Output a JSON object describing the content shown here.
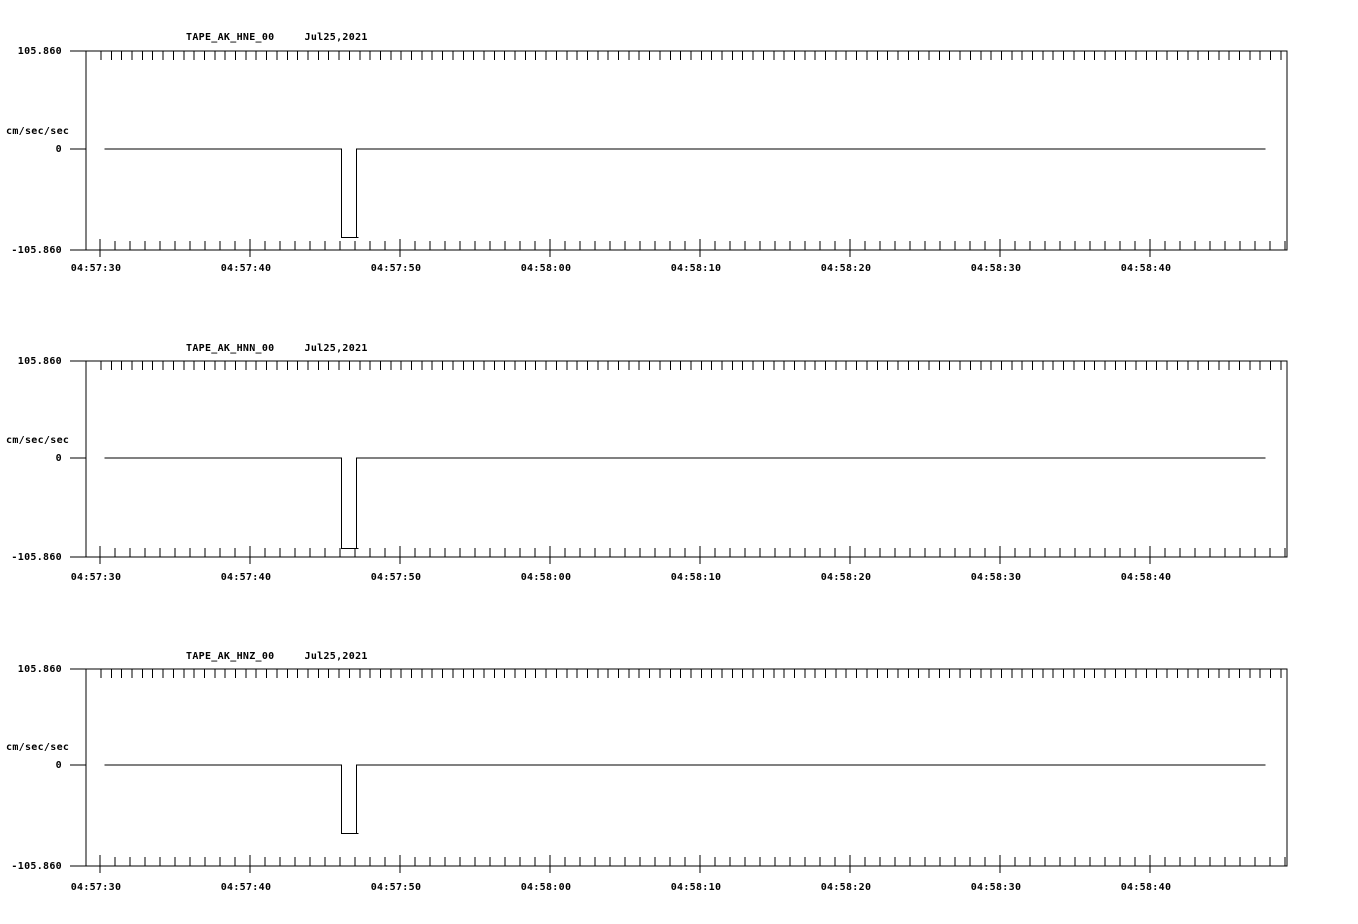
{
  "page": {
    "background": "#ffffff",
    "line_color": "#000000"
  },
  "chart_data": {
    "type": "line",
    "description": "Three-panel strong-motion accelerogram record, one trace per channel, flat at zero with a single ~1 s negative rectangular pulse",
    "x_axis": {
      "tick_labels": [
        "04:57:30",
        "04:57:40",
        "04:57:50",
        "04:58:00",
        "04:58:10",
        "04:58:20",
        "04:58:30",
        "04:58:40"
      ],
      "major_interval_s": 10,
      "minor_interval_s": 1,
      "axis_start": "04:57:29",
      "axis_end": "04:58:49",
      "grid": false
    },
    "y_axis": {
      "label": "cm/sec/sec",
      "max": 105.86,
      "min": -105.86,
      "tick_labels": {
        "max": "105.860",
        "zero": "0",
        "min": "-105.860"
      }
    },
    "panels": [
      {
        "station": "TAPE_AK_HNE_00",
        "date": "Jul25,2021",
        "trace": {
          "baseline_value": 0,
          "start_s_after_04_57_30": 0.3,
          "end_s_after_04_57_30": 77.7,
          "pulse": {
            "start_s": 16.1,
            "end_s": 17.1,
            "value": -93
          }
        }
      },
      {
        "station": "TAPE_AK_HNN_00",
        "date": "Jul25,2021",
        "trace": {
          "baseline_value": 0,
          "start_s_after_04_57_30": 0.3,
          "end_s_after_04_57_30": 77.7,
          "pulse": {
            "start_s": 16.1,
            "end_s": 17.1,
            "value": -97
          }
        }
      },
      {
        "station": "TAPE_AK_HNZ_00",
        "date": "Jul25,2021",
        "trace": {
          "baseline_value": 0,
          "start_s_after_04_57_30": 0.3,
          "end_s_after_04_57_30": 77.7,
          "pulse": {
            "start_s": 16.1,
            "end_s": 17.1,
            "value": -72
          }
        }
      }
    ]
  }
}
